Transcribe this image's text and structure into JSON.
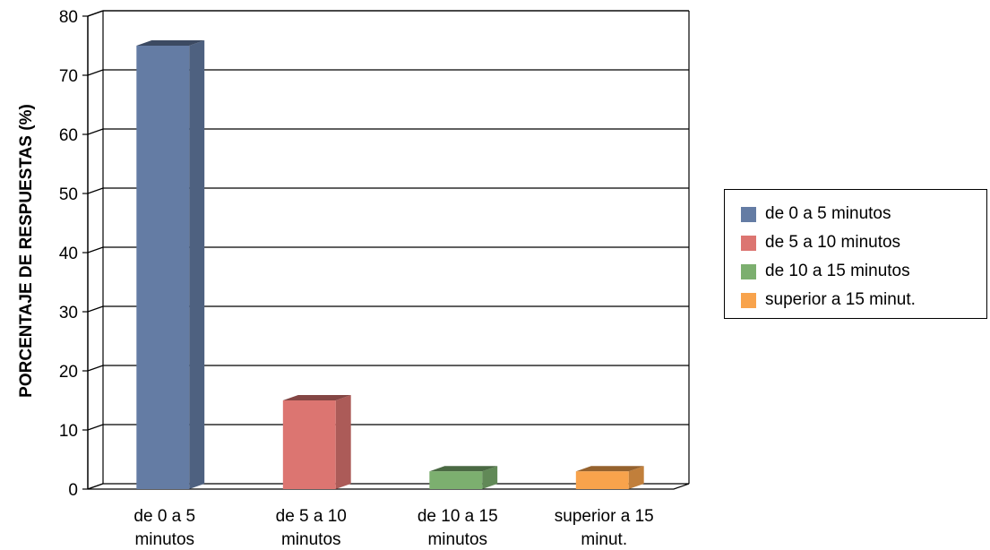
{
  "chart_data": {
    "type": "bar",
    "categories": [
      "de 0 a 5 minutos",
      "de 5 a 10 minutos",
      "de 10 a 15 minutos",
      "superior a 15 minut."
    ],
    "category_tick_lines": [
      [
        "de 0 a 5",
        "minutos"
      ],
      [
        "de 5 a 10",
        "minutos"
      ],
      [
        "de 10 a 15",
        "minutos"
      ],
      [
        "superior a 15",
        "minut."
      ]
    ],
    "values": [
      75,
      15,
      3,
      3
    ],
    "colors": [
      "#647ca4",
      "#dc7571",
      "#7caf6f",
      "#f8a34c"
    ],
    "ylabel": "PORCENTAJE DE RESPUESTAS (%)",
    "xlabel": "",
    "ylim": [
      0,
      80
    ],
    "yticks": [
      0,
      10,
      20,
      30,
      40,
      50,
      60,
      70,
      80
    ],
    "grid": true,
    "legend_position": "right",
    "style": "3d-column"
  },
  "legend": {
    "items": [
      {
        "label": "de 0 a 5 minutos",
        "color": "#647ca4"
      },
      {
        "label": "de 5 a 10 minutos",
        "color": "#dc7571"
      },
      {
        "label": "de 10 a 15 minutos",
        "color": "#7caf6f"
      },
      {
        "label": "superior a 15 minut.",
        "color": "#f8a34c"
      }
    ]
  }
}
